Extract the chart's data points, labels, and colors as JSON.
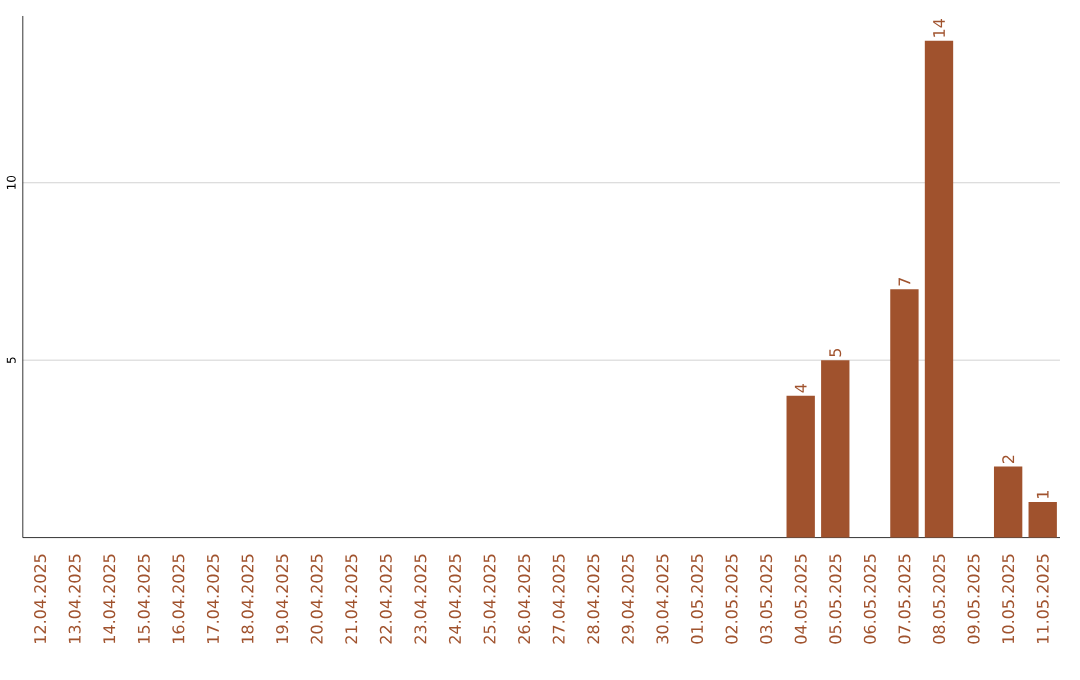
{
  "chart_data": {
    "type": "bar",
    "categories": [
      "12.04.2025",
      "13.04.2025",
      "14.04.2025",
      "15.04.2025",
      "16.04.2025",
      "17.04.2025",
      "18.04.2025",
      "19.04.2025",
      "20.04.2025",
      "21.04.2025",
      "22.04.2025",
      "23.04.2025",
      "24.04.2025",
      "25.04.2025",
      "26.04.2025",
      "27.04.2025",
      "28.04.2025",
      "29.04.2025",
      "30.04.2025",
      "01.05.2025",
      "02.05.2025",
      "03.05.2025",
      "04.05.2025",
      "05.05.2025",
      "06.05.2025",
      "07.05.2025",
      "08.05.2025",
      "09.05.2025",
      "10.05.2025",
      "11.05.2025"
    ],
    "values": [
      0,
      0,
      0,
      0,
      0,
      0,
      0,
      0,
      0,
      0,
      0,
      0,
      0,
      0,
      0,
      0,
      0,
      0,
      0,
      0,
      0,
      0,
      4,
      5,
      0,
      7,
      14,
      0,
      2,
      1
    ],
    "value_labels": [
      null,
      null,
      null,
      null,
      null,
      null,
      null,
      null,
      null,
      null,
      null,
      null,
      null,
      null,
      null,
      null,
      null,
      null,
      null,
      null,
      null,
      null,
      "4",
      "5",
      null,
      "7",
      "14",
      null,
      "2",
      "1"
    ],
    "color": "#a0522d",
    "ylim": [
      0,
      14.7
    ],
    "yticks": [
      5,
      10
    ],
    "grid": "y"
  }
}
